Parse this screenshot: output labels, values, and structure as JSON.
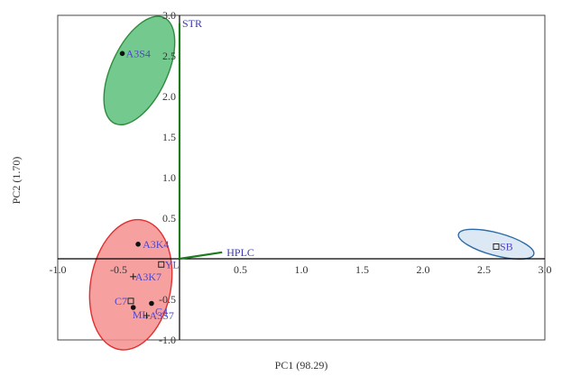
{
  "chart_data": {
    "type": "scatter",
    "title": "",
    "xlabel": "PC1 (98.29)",
    "ylabel": "PC2 (1.70)",
    "xlim": [
      -1.0,
      3.0
    ],
    "ylim": [
      -1.0,
      3.0
    ],
    "x_ticks": [
      "-1.0",
      "-0.5",
      "0.5",
      "1.0",
      "1.5",
      "2.0",
      "2.5",
      "3.0"
    ],
    "y_ticks": [
      "3.0",
      "2.5",
      "2.0",
      "1.5",
      "1.0",
      "0.5",
      "-0.5",
      "-1.0"
    ],
    "grid": false,
    "points": [
      {
        "label": "A3S4",
        "x": -0.47,
        "y": 2.53,
        "marker": "dot"
      },
      {
        "label": "A3K4",
        "x": -0.34,
        "y": 0.18,
        "marker": "dot"
      },
      {
        "label": "YL",
        "x": -0.15,
        "y": -0.07,
        "marker": "square"
      },
      {
        "label": "A3K7",
        "x": -0.38,
        "y": -0.22,
        "marker": "plus"
      },
      {
        "label": "C7",
        "x": -0.4,
        "y": -0.52,
        "marker": "square"
      },
      {
        "label": "C4",
        "x": -0.23,
        "y": -0.55,
        "marker": "dot"
      },
      {
        "label": "ML",
        "x": -0.38,
        "y": -0.6,
        "marker": "dot"
      },
      {
        "label": "A3S7",
        "x": -0.27,
        "y": -0.7,
        "marker": "plus"
      },
      {
        "label": "SB",
        "x": 2.6,
        "y": 0.15,
        "marker": "square"
      }
    ],
    "vectors": [
      {
        "label": "STR",
        "x": 0.0,
        "y": 2.9
      },
      {
        "label": "HPLC",
        "x": 0.35,
        "y": 0.08
      }
    ],
    "ellipses": [
      {
        "cx": -0.33,
        "cy": 2.32,
        "rx": 0.23,
        "ry": 0.72,
        "angle_deg": 25,
        "fill": "#5cbf7a",
        "stroke": "#2e8b3e"
      },
      {
        "cx": -0.4,
        "cy": -0.32,
        "rx": 0.33,
        "ry": 0.81,
        "angle_deg": 10,
        "fill": "#f58f8f",
        "stroke": "#e03030"
      },
      {
        "cx": 2.6,
        "cy": 0.18,
        "rx": 0.32,
        "ry": 0.14,
        "angle_deg": 15,
        "fill": "#d6e4f1",
        "stroke": "#2b6aa6"
      }
    ],
    "colors": {
      "vector": "#1f7a1f",
      "label": "#4f46c8",
      "axis": "#000000"
    }
  }
}
